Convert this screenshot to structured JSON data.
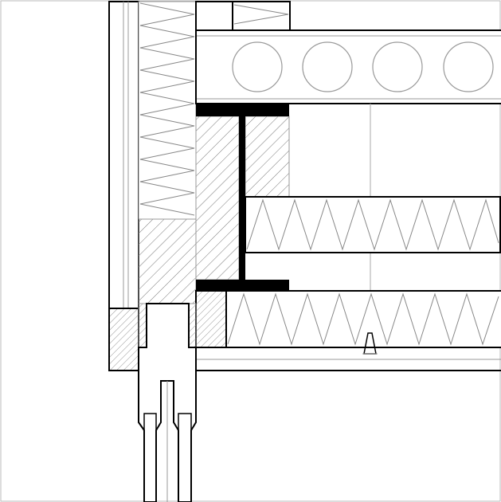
{
  "drawing": {
    "type": "architectural-section-detail",
    "colors": {
      "line": "#000000",
      "thin_line": "#9a9a9a",
      "fill": "#000000",
      "background": "#ffffff"
    },
    "elements": [
      "hollow-core-slab",
      "steel-i-beam",
      "mineral-wool-insulation",
      "cladding-panel",
      "window-frame"
    ]
  }
}
